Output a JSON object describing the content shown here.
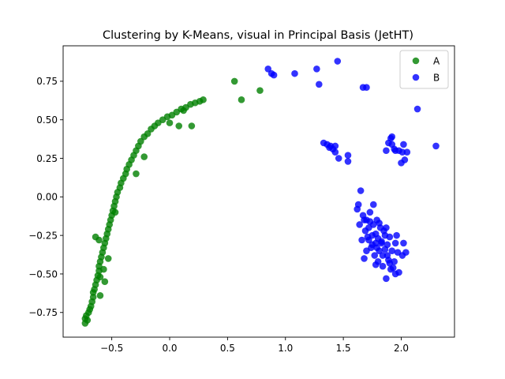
{
  "chart_data": {
    "type": "scatter",
    "title": "Clustering by K-Means, visual in Principal Basis (JetHT)",
    "xlabel": "",
    "ylabel": "",
    "xlim": [
      -0.92,
      2.46
    ],
    "ylim": [
      -0.91,
      0.98
    ],
    "xticks": [
      -0.5,
      0.0,
      0.5,
      1.0,
      1.5,
      2.0
    ],
    "xtick_labels": [
      "−0.5",
      "0.0",
      "0.5",
      "1.0",
      "1.5",
      "2.0"
    ],
    "yticks": [
      -0.75,
      -0.5,
      -0.25,
      0.0,
      0.25,
      0.5,
      0.75
    ],
    "ytick_labels": [
      "−0.75",
      "−0.50",
      "−0.25",
      "0.00",
      "0.25",
      "0.50",
      "0.75"
    ],
    "grid": false,
    "legend_position": "top-right",
    "series": [
      {
        "name": "A",
        "color": "#008000",
        "points": [
          [
            -0.73,
            -0.79
          ],
          [
            -0.73,
            -0.82
          ],
          [
            -0.71,
            -0.8
          ],
          [
            -0.72,
            -0.77
          ],
          [
            -0.7,
            -0.75
          ],
          [
            -0.69,
            -0.73
          ],
          [
            -0.68,
            -0.71
          ],
          [
            -0.67,
            -0.68
          ],
          [
            -0.66,
            -0.65
          ],
          [
            -0.66,
            -0.62
          ],
          [
            -0.65,
            -0.6
          ],
          [
            -0.64,
            -0.57
          ],
          [
            -0.63,
            -0.54
          ],
          [
            -0.62,
            -0.51
          ],
          [
            -0.61,
            -0.48
          ],
          [
            -0.61,
            -0.45
          ],
          [
            -0.6,
            -0.42
          ],
          [
            -0.59,
            -0.39
          ],
          [
            -0.58,
            -0.36
          ],
          [
            -0.57,
            -0.33
          ],
          [
            -0.56,
            -0.3
          ],
          [
            -0.55,
            -0.27
          ],
          [
            -0.54,
            -0.24
          ],
          [
            -0.53,
            -0.21
          ],
          [
            -0.52,
            -0.18
          ],
          [
            -0.51,
            -0.15
          ],
          [
            -0.5,
            -0.12
          ],
          [
            -0.49,
            -0.09
          ],
          [
            -0.48,
            -0.06
          ],
          [
            -0.47,
            -0.03
          ],
          [
            -0.46,
            0.0
          ],
          [
            -0.45,
            0.03
          ],
          [
            -0.43,
            0.06
          ],
          [
            -0.42,
            0.09
          ],
          [
            -0.4,
            0.12
          ],
          [
            -0.38,
            0.15
          ],
          [
            -0.37,
            0.18
          ],
          [
            -0.35,
            0.21
          ],
          [
            -0.33,
            0.24
          ],
          [
            -0.31,
            0.27
          ],
          [
            -0.29,
            0.3
          ],
          [
            -0.27,
            0.33
          ],
          [
            -0.25,
            0.36
          ],
          [
            -0.22,
            0.39
          ],
          [
            -0.19,
            0.41
          ],
          [
            -0.16,
            0.44
          ],
          [
            -0.13,
            0.46
          ],
          [
            -0.1,
            0.48
          ],
          [
            -0.06,
            0.5
          ],
          [
            -0.02,
            0.52
          ],
          [
            0.02,
            0.53
          ],
          [
            0.06,
            0.55
          ],
          [
            0.1,
            0.57
          ],
          [
            0.14,
            0.58
          ],
          [
            0.18,
            0.6
          ],
          [
            0.22,
            0.61
          ],
          [
            0.26,
            0.62
          ],
          [
            0.29,
            0.63
          ],
          [
            -0.64,
            -0.26
          ],
          [
            -0.61,
            -0.28
          ],
          [
            -0.6,
            -0.64
          ],
          [
            -0.47,
            -0.1
          ],
          [
            -0.29,
            0.15
          ],
          [
            -0.22,
            0.26
          ],
          [
            0.08,
            0.46
          ],
          [
            0.19,
            0.46
          ],
          [
            -0.56,
            -0.55
          ],
          [
            -0.53,
            -0.4
          ],
          [
            -0.6,
            -0.52
          ],
          [
            -0.57,
            -0.47
          ],
          [
            0.0,
            0.48
          ],
          [
            0.12,
            0.56
          ],
          [
            0.56,
            0.75
          ],
          [
            0.62,
            0.63
          ],
          [
            0.78,
            0.69
          ]
        ]
      },
      {
        "name": "B",
        "color": "#0000ff",
        "points": [
          [
            0.85,
            0.83
          ],
          [
            0.88,
            0.8
          ],
          [
            0.9,
            0.79
          ],
          [
            1.08,
            0.8
          ],
          [
            1.27,
            0.83
          ],
          [
            1.29,
            0.73
          ],
          [
            1.45,
            0.88
          ],
          [
            1.67,
            0.71
          ],
          [
            1.7,
            0.71
          ],
          [
            2.14,
            0.57
          ],
          [
            1.33,
            0.35
          ],
          [
            1.36,
            0.34
          ],
          [
            1.39,
            0.33
          ],
          [
            1.41,
            0.31
          ],
          [
            1.43,
            0.33
          ],
          [
            1.38,
            0.32
          ],
          [
            1.46,
            0.25
          ],
          [
            1.54,
            0.27
          ],
          [
            1.54,
            0.23
          ],
          [
            1.43,
            0.29
          ],
          [
            1.92,
            0.39
          ],
          [
            1.89,
            0.35
          ],
          [
            1.92,
            0.34
          ],
          [
            1.95,
            0.3
          ],
          [
            1.98,
            0.3
          ],
          [
            2.01,
            0.29
          ],
          [
            2.02,
            0.34
          ],
          [
            2.05,
            0.29
          ],
          [
            2.0,
            0.22
          ],
          [
            2.03,
            0.24
          ],
          [
            2.3,
            0.33
          ],
          [
            1.87,
            0.3
          ],
          [
            1.91,
            0.38
          ],
          [
            1.94,
            0.31
          ],
          [
            1.63,
            -0.05
          ],
          [
            1.65,
            0.04
          ],
          [
            1.62,
            -0.08
          ],
          [
            1.67,
            -0.12
          ],
          [
            1.7,
            -0.15
          ],
          [
            1.72,
            -0.2
          ],
          [
            1.75,
            -0.25
          ],
          [
            1.78,
            -0.3
          ],
          [
            1.8,
            -0.27
          ],
          [
            1.83,
            -0.3
          ],
          [
            1.86,
            -0.34
          ],
          [
            1.88,
            -0.38
          ],
          [
            1.9,
            -0.43
          ],
          [
            1.93,
            -0.46
          ],
          [
            1.95,
            -0.5
          ],
          [
            1.87,
            -0.53
          ],
          [
            1.98,
            -0.49
          ],
          [
            2.01,
            -0.38
          ],
          [
            2.04,
            -0.36
          ],
          [
            1.7,
            -0.35
          ],
          [
            1.68,
            -0.4
          ],
          [
            1.73,
            -0.1
          ],
          [
            1.76,
            -0.05
          ],
          [
            1.79,
            -0.15
          ],
          [
            1.82,
            -0.2
          ],
          [
            1.85,
            -0.22
          ],
          [
            1.74,
            -0.33
          ],
          [
            1.77,
            -0.38
          ],
          [
            1.9,
            -0.26
          ],
          [
            1.95,
            -0.3
          ],
          [
            1.97,
            -0.36
          ],
          [
            1.8,
            -0.42
          ],
          [
            1.84,
            -0.45
          ],
          [
            1.66,
            -0.28
          ],
          [
            1.69,
            -0.22
          ],
          [
            1.72,
            -0.28
          ],
          [
            1.76,
            -0.18
          ],
          [
            1.81,
            -0.35
          ],
          [
            1.88,
            -0.31
          ],
          [
            1.92,
            -0.35
          ],
          [
            1.86,
            -0.25
          ],
          [
            1.78,
            -0.24
          ],
          [
            1.83,
            -0.29
          ],
          [
            1.75,
            -0.31
          ],
          [
            1.71,
            -0.26
          ],
          [
            1.79,
            -0.33
          ],
          [
            1.89,
            -0.41
          ],
          [
            1.94,
            -0.42
          ],
          [
            1.64,
            -0.18
          ],
          [
            1.68,
            -0.15
          ],
          [
            1.73,
            -0.16
          ],
          [
            1.81,
            -0.17
          ],
          [
            1.87,
            -0.2
          ],
          [
            1.96,
            -0.25
          ],
          [
            2.02,
            -0.3
          ],
          [
            1.84,
            -0.38
          ],
          [
            1.78,
            -0.44
          ],
          [
            1.91,
            -0.47
          ]
        ]
      }
    ]
  }
}
